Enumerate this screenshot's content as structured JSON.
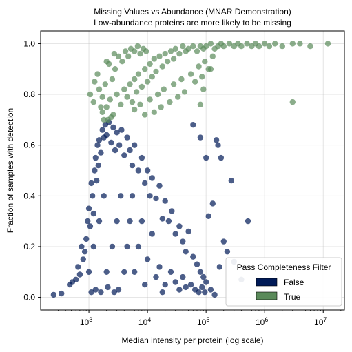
{
  "chart_data": {
    "type": "scatter",
    "title": "Missing Values vs Abundance (MNAR Demonstration)",
    "subtitle": "Low-abundance proteins are more likely to be missing",
    "xlabel": "Median intensity per protein (log scale)",
    "ylabel": "Fraction of samples with detection",
    "x_scale": "log",
    "xlim": [
      150,
      23000000
    ],
    "ylim": [
      -0.05,
      1.05
    ],
    "x_ticks": [
      {
        "value": 1000,
        "base": "10",
        "exp": "3"
      },
      {
        "value": 10000,
        "base": "10",
        "exp": "4"
      },
      {
        "value": 100000,
        "base": "10",
        "exp": "5"
      },
      {
        "value": 1000000,
        "base": "10",
        "exp": "6"
      },
      {
        "value": 10000000,
        "base": "10",
        "exp": "7"
      }
    ],
    "y_ticks": [
      "0.0",
      "0.2",
      "0.4",
      "0.6",
      "0.8",
      "1.0"
    ],
    "grid": true,
    "legend": {
      "title": "Pass Completeness Filter",
      "placement": "bottom-right",
      "entries": [
        {
          "label": "False",
          "color": "#001a57"
        },
        {
          "label": "True",
          "color": "#5a8a5a"
        }
      ]
    },
    "series": [
      {
        "name": "False",
        "color": "#001a57",
        "points": [
          [
            250,
            0.01
          ],
          [
            340,
            0.015
          ],
          [
            470,
            0.05
          ],
          [
            520,
            0.06
          ],
          [
            600,
            0.07
          ],
          [
            650,
            0.12
          ],
          [
            700,
            0.09
          ],
          [
            750,
            0.2
          ],
          [
            800,
            0.15
          ],
          [
            850,
            0.18
          ],
          [
            900,
            0.23
          ],
          [
            950,
            0.3
          ],
          [
            1000,
            0.35
          ],
          [
            1050,
            0.28
          ],
          [
            1100,
            0.45
          ],
          [
            1150,
            0.4
          ],
          [
            1200,
            0.33
          ],
          [
            1250,
            0.5
          ],
          [
            1300,
            0.55
          ],
          [
            1350,
            0.46
          ],
          [
            1400,
            0.6
          ],
          [
            1450,
            0.52
          ],
          [
            1500,
            0.62
          ],
          [
            1600,
            0.57
          ],
          [
            1700,
            0.66
          ],
          [
            1800,
            0.63
          ],
          [
            1900,
            0.68
          ],
          [
            2000,
            0.64
          ],
          [
            2200,
            0.69
          ],
          [
            2400,
            0.61
          ],
          [
            2600,
            0.67
          ],
          [
            2800,
            0.58
          ],
          [
            3000,
            0.65
          ],
          [
            3300,
            0.6
          ],
          [
            3600,
            0.66
          ],
          [
            4000,
            0.56
          ],
          [
            4500,
            0.63
          ],
          [
            5000,
            0.58
          ],
          [
            5500,
            0.52
          ],
          [
            6000,
            0.6
          ],
          [
            7000,
            0.5
          ],
          [
            8000,
            0.55
          ],
          [
            9000,
            0.45
          ],
          [
            10000,
            0.5
          ],
          [
            11000,
            0.4
          ],
          [
            12000,
            0.47
          ],
          [
            14000,
            0.39
          ],
          [
            16000,
            0.44
          ],
          [
            18000,
            0.31
          ],
          [
            20000,
            0.38
          ],
          [
            23000,
            0.3
          ],
          [
            26000,
            0.34
          ],
          [
            30000,
            0.25
          ],
          [
            35000,
            0.28
          ],
          [
            40000,
            0.22
          ],
          [
            45000,
            0.18
          ],
          [
            50000,
            0.26
          ],
          [
            60000,
            0.16
          ],
          [
            70000,
            0.13
          ],
          [
            80000,
            0.1
          ],
          [
            90000,
            0.08
          ],
          [
            100000,
            0.06
          ],
          [
            110000,
            0.32
          ],
          [
            130000,
            0.37
          ],
          [
            150000,
            0.62
          ],
          [
            160000,
            0.6
          ],
          [
            170000,
            0.12
          ],
          [
            180000,
            0.55
          ],
          [
            200000,
            0.22
          ],
          [
            230000,
            0.18
          ],
          [
            270000,
            0.46
          ],
          [
            300000,
            0.14
          ],
          [
            520000,
            0.3
          ],
          [
            400000,
            0.07
          ],
          [
            60000,
            0.68
          ],
          [
            80000,
            0.63
          ],
          [
            100000,
            0.55
          ],
          [
            1000,
            0.1
          ],
          [
            1200,
            0.2
          ],
          [
            1500,
            0.3
          ],
          [
            1800,
            0.4
          ],
          [
            2000,
            0.1
          ],
          [
            2500,
            0.2
          ],
          [
            3000,
            0.3
          ],
          [
            3500,
            0.4
          ],
          [
            4000,
            0.1
          ],
          [
            4500,
            0.2
          ],
          [
            5000,
            0.3
          ],
          [
            5500,
            0.4
          ],
          [
            6000,
            0.1
          ],
          [
            7000,
            0.2
          ],
          [
            8000,
            0.3
          ],
          [
            9000,
            0.05
          ],
          [
            10000,
            0.15
          ],
          [
            12000,
            0.25
          ],
          [
            14000,
            0.08
          ],
          [
            16000,
            0.12
          ],
          [
            18000,
            0.02
          ],
          [
            20000,
            0.05
          ],
          [
            25000,
            0.1
          ],
          [
            30000,
            0.06
          ],
          [
            35000,
            0.03
          ],
          [
            40000,
            0.08
          ],
          [
            45000,
            0.04
          ],
          [
            55000,
            0.05
          ],
          [
            65000,
            0.03
          ],
          [
            75000,
            0.02
          ],
          [
            85000,
            0.04
          ],
          [
            95000,
            0.02
          ],
          [
            120000,
            0.03
          ],
          [
            140000,
            0.01
          ],
          [
            1100,
            0.02
          ],
          [
            1300,
            0.03
          ],
          [
            1600,
            0.02
          ],
          [
            2100,
            0.04
          ],
          [
            2700,
            0.02
          ],
          [
            3200,
            0.03
          ]
        ]
      },
      {
        "name": "True",
        "color": "#5a8a5a",
        "points": [
          [
            2000,
            0.75
          ],
          [
            2300,
            0.78
          ],
          [
            2600,
            0.72
          ],
          [
            3000,
            0.8
          ],
          [
            3500,
            0.76
          ],
          [
            4000,
            0.82
          ],
          [
            4500,
            0.79
          ],
          [
            5000,
            0.84
          ],
          [
            5500,
            0.77
          ],
          [
            6000,
            0.86
          ],
          [
            6500,
            0.81
          ],
          [
            7000,
            0.88
          ],
          [
            8000,
            0.83
          ],
          [
            9000,
            0.9
          ],
          [
            10000,
            0.85
          ],
          [
            11000,
            0.92
          ],
          [
            12000,
            0.87
          ],
          [
            13000,
            0.94
          ],
          [
            14000,
            0.89
          ],
          [
            16000,
            0.95
          ],
          [
            18000,
            0.91
          ],
          [
            20000,
            0.96
          ],
          [
            22000,
            0.93
          ],
          [
            25000,
            0.97
          ],
          [
            28000,
            0.94
          ],
          [
            30000,
            0.98
          ],
          [
            35000,
            0.96
          ],
          [
            40000,
            0.99
          ],
          [
            45000,
            0.97
          ],
          [
            50000,
            0.98
          ],
          [
            60000,
            0.99
          ],
          [
            70000,
            0.97
          ],
          [
            80000,
            0.99
          ],
          [
            90000,
            0.98
          ],
          [
            100000,
            0.99
          ],
          [
            120000,
            1.0
          ],
          [
            140000,
            0.98
          ],
          [
            160000,
            0.99
          ],
          [
            180000,
            1.0
          ],
          [
            200000,
            0.99
          ],
          [
            250000,
            1.0
          ],
          [
            300000,
            0.99
          ],
          [
            350000,
            1.0
          ],
          [
            400000,
            0.99
          ],
          [
            500000,
            1.0
          ],
          [
            600000,
            0.99
          ],
          [
            700000,
            1.0
          ],
          [
            800000,
            0.99
          ],
          [
            1000000,
            1.0
          ],
          [
            1200000,
            0.99
          ],
          [
            1500000,
            1.0
          ],
          [
            2000000,
            0.99
          ],
          [
            3000000,
            0.77
          ],
          [
            6000000,
            0.99
          ],
          [
            12000000,
            1.0
          ],
          [
            3000000,
            1.0
          ],
          [
            4000000,
            1.0
          ],
          [
            1400,
            0.88
          ],
          [
            1500,
            0.82
          ],
          [
            1700,
            0.79
          ],
          [
            1900,
            0.84
          ],
          [
            2200,
            0.92
          ],
          [
            2500,
            0.86
          ],
          [
            2800,
            0.9
          ],
          [
            3200,
            0.95
          ],
          [
            3700,
            0.93
          ],
          [
            4200,
            0.97
          ],
          [
            4700,
            0.95
          ],
          [
            5200,
            0.98
          ],
          [
            6000,
            0.97
          ],
          [
            6800,
            0.99
          ],
          [
            7500,
            0.96
          ],
          [
            8500,
            0.98
          ],
          [
            9500,
            0.97
          ],
          [
            6000,
            0.74
          ],
          [
            7500,
            0.76
          ],
          [
            9000,
            0.72
          ],
          [
            11000,
            0.78
          ],
          [
            13000,
            0.73
          ],
          [
            15000,
            0.8
          ],
          [
            17000,
            0.75
          ],
          [
            19000,
            0.82
          ],
          [
            24000,
            0.77
          ],
          [
            28000,
            0.84
          ],
          [
            33000,
            0.79
          ],
          [
            38000,
            0.86
          ],
          [
            43000,
            0.81
          ],
          [
            55000,
            0.88
          ],
          [
            65000,
            0.85
          ],
          [
            75000,
            0.91
          ],
          [
            85000,
            0.87
          ],
          [
            95000,
            0.93
          ],
          [
            110000,
            0.9
          ],
          [
            130000,
            0.95
          ],
          [
            80000,
            0.76
          ],
          [
            90000,
            0.82
          ],
          [
            120000,
            0.9
          ],
          [
            1050,
            0.8
          ],
          [
            1200,
            0.77
          ],
          [
            1250,
            0.85
          ],
          [
            1700,
            0.73
          ],
          [
            2100,
            0.7
          ],
          [
            2400,
            0.71
          ],
          [
            1800,
            0.7
          ],
          [
            1600,
            0.75
          ],
          [
            2000,
            0.93
          ],
          [
            2700,
            0.96
          ]
        ]
      }
    ]
  }
}
